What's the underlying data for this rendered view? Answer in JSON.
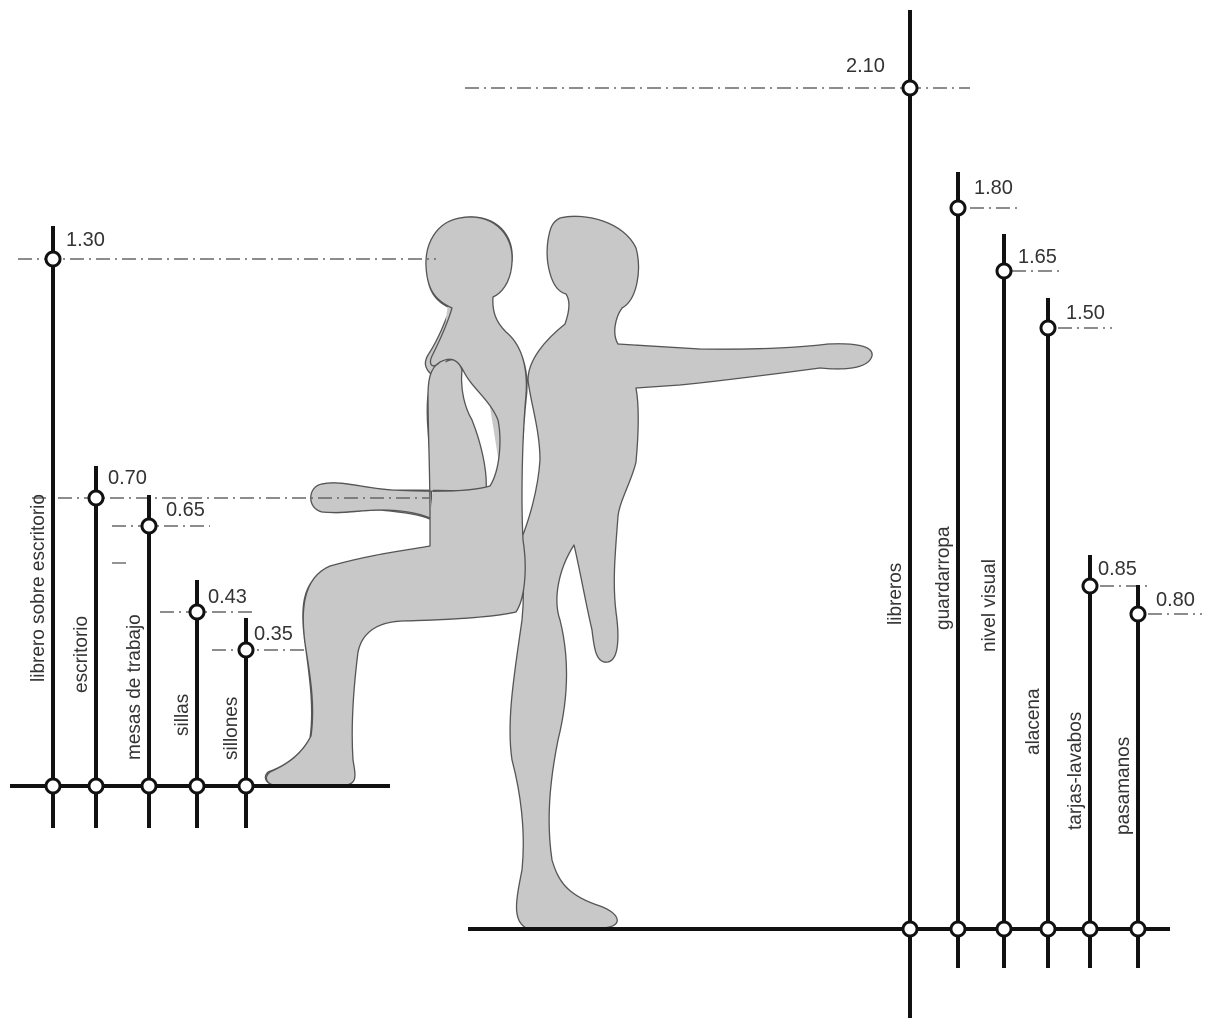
{
  "colors": {
    "line": "#111111",
    "figure_fill": "#c8c8c8",
    "figure_stroke": "#555555",
    "dash": "#666666",
    "text": "#333333"
  },
  "left_group": {
    "poles": [
      {
        "id": "librero-sobre-escritorio",
        "label": "librero sobre escritorio",
        "value": "1.30"
      },
      {
        "id": "escritorio",
        "label": "escritorio",
        "value": "0.70"
      },
      {
        "id": "mesas-de-trabajo",
        "label": "mesas de trabajo",
        "value": "0.65"
      },
      {
        "id": "sillas",
        "label": "sillas",
        "value": "0.43"
      },
      {
        "id": "sillones",
        "label": "sillones",
        "value": "0.35"
      }
    ]
  },
  "right_group": {
    "poles": [
      {
        "id": "libreros",
        "label": "libreros",
        "value": "2.10"
      },
      {
        "id": "guardarropa",
        "label": "guardarropa",
        "value": "1.80"
      },
      {
        "id": "nivel-visual",
        "label": "nivel visual",
        "value": "1.65"
      },
      {
        "id": "alacena",
        "label": "alacena",
        "value": "1.50"
      },
      {
        "id": "tarjas-lavabos",
        "label": "tarjas-lavabos",
        "value": "0.85"
      },
      {
        "id": "pasamanos",
        "label": "pasamanos",
        "value": "0.80"
      }
    ]
  }
}
